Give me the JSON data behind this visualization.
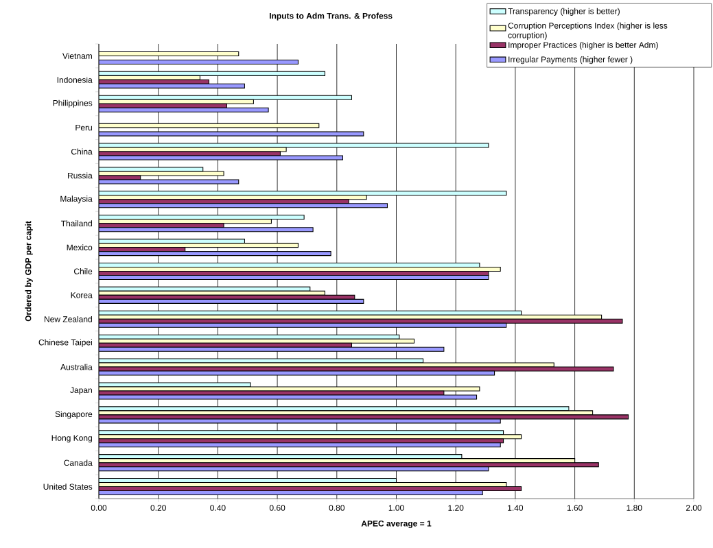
{
  "chart_data": {
    "type": "bar",
    "orientation": "horizontal",
    "title": "Inputs to Adm Trans. & Profess",
    "xlabel": "APEC average = 1",
    "ylabel": "Ordered by GDP per capit",
    "categories": [
      "Vietnam",
      "Indonesia",
      "Philippines",
      "Peru",
      "China",
      "Russia",
      "Malaysia",
      "Thailand",
      "Mexico",
      "Chile",
      "Korea",
      "New Zealand",
      "Chinese Taipei",
      "Australia",
      "Japan",
      "Singapore",
      "Hong Kong",
      "Canada",
      "United States"
    ],
    "series": [
      {
        "name": "Transparency (higher is better)",
        "color": "#ccffff",
        "values": [
          null,
          0.76,
          0.85,
          null,
          1.31,
          0.35,
          1.37,
          0.69,
          0.49,
          1.28,
          0.71,
          1.42,
          1.01,
          1.09,
          0.51,
          1.58,
          1.36,
          1.22,
          1.0
        ]
      },
      {
        "name": "Corruption Perceptions Index (higher is less corruption)",
        "color": "#ffffcc",
        "values": [
          0.47,
          0.34,
          0.52,
          0.74,
          0.63,
          0.42,
          0.9,
          0.58,
          0.67,
          1.35,
          0.76,
          1.69,
          1.06,
          1.53,
          1.28,
          1.66,
          1.42,
          1.6,
          1.37
        ]
      },
      {
        "name": "Improper Practices (higher is better Adm)",
        "color": "#993366",
        "values": [
          null,
          0.37,
          0.43,
          null,
          0.61,
          0.14,
          0.84,
          0.42,
          0.29,
          1.31,
          0.86,
          1.76,
          0.85,
          1.73,
          1.16,
          1.78,
          1.36,
          1.68,
          1.42
        ]
      },
      {
        "name": "Irregular Payments (higher fewer )",
        "color": "#9999ff",
        "values": [
          0.67,
          0.49,
          0.57,
          0.89,
          0.82,
          0.47,
          0.97,
          0.72,
          0.78,
          1.31,
          0.89,
          1.37,
          1.16,
          1.33,
          1.27,
          1.35,
          1.35,
          1.31,
          1.29
        ]
      }
    ],
    "xlim": [
      0,
      2
    ],
    "xticks": [
      {
        "value": 0,
        "label": "0.00"
      },
      {
        "value": 0.2,
        "label": "0.20"
      },
      {
        "value": 0.4,
        "label": "0.40"
      },
      {
        "value": 0.6,
        "label": "0.60"
      },
      {
        "value": 0.8,
        "label": "0.80"
      },
      {
        "value": 1,
        "label": "1.00"
      },
      {
        "value": 1.2,
        "label": "1.20"
      },
      {
        "value": 1.4,
        "label": "1.40"
      },
      {
        "value": 1.6,
        "label": "1.60"
      },
      {
        "value": 1.8,
        "label": "1.80"
      },
      {
        "value": 2,
        "label": "2.00"
      }
    ],
    "grid": "x",
    "legend": "top right"
  }
}
